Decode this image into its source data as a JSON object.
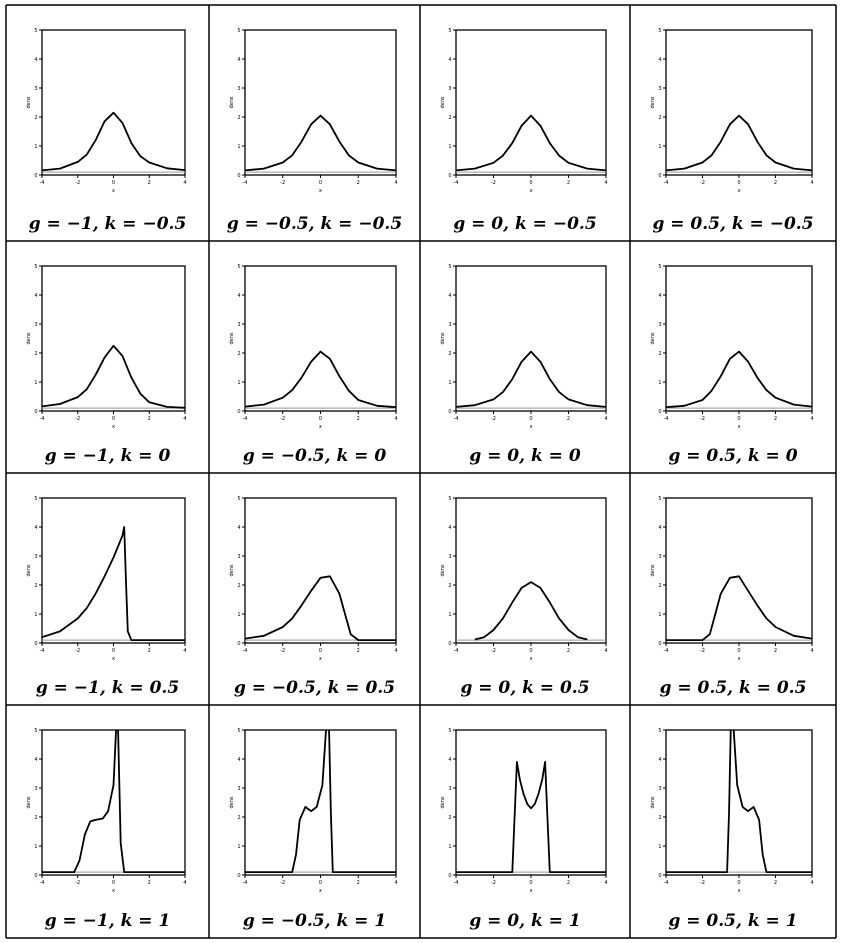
{
  "chart_data": [
    {
      "type": "line",
      "caption": "g = −1, k = −0.5",
      "g": -1,
      "k": -0.5,
      "x": [
        -4,
        -3,
        -2,
        -1.5,
        -1,
        -0.5,
        0,
        0.5,
        1,
        1.5,
        2,
        3,
        4
      ],
      "y": [
        0.06,
        0.12,
        0.35,
        0.6,
        1.1,
        1.75,
        2.05,
        1.7,
        1.0,
        0.55,
        0.33,
        0.13,
        0.07
      ],
      "xlim": [
        -4,
        4
      ],
      "ylim": [
        0,
        5
      ],
      "xticks": [
        "-4",
        "-2",
        "0",
        "2",
        "4"
      ],
      "yticks": [
        "0",
        "1",
        "2",
        "3",
        "4",
        "5"
      ],
      "ylabel": "dens",
      "xlabel": "x"
    },
    {
      "type": "line",
      "caption": "g = −0.5, k = −0.5",
      "g": -0.5,
      "k": -0.5,
      "x": [
        -4,
        -3,
        -2,
        -1.5,
        -1,
        -0.5,
        0,
        0.5,
        1,
        1.5,
        2,
        3,
        4
      ],
      "y": [
        0.06,
        0.12,
        0.33,
        0.58,
        1.05,
        1.65,
        1.95,
        1.65,
        1.05,
        0.58,
        0.33,
        0.12,
        0.06
      ],
      "xlim": [
        -4,
        4
      ],
      "ylim": [
        0,
        5
      ],
      "xticks": [
        "-4",
        "-2",
        "0",
        "2",
        "4"
      ],
      "yticks": [
        "0",
        "1",
        "2",
        "3",
        "4",
        "5"
      ],
      "ylabel": "dens",
      "xlabel": "x"
    },
    {
      "type": "line",
      "caption": "g = 0, k = −0.5",
      "g": 0,
      "k": -0.5,
      "x": [
        -4,
        -3,
        -2,
        -1.5,
        -1,
        -0.5,
        0,
        0.5,
        1,
        1.5,
        2,
        3,
        4
      ],
      "y": [
        0.06,
        0.12,
        0.32,
        0.57,
        1.0,
        1.6,
        1.95,
        1.6,
        1.0,
        0.57,
        0.32,
        0.12,
        0.06
      ],
      "xlim": [
        -4,
        4
      ],
      "ylim": [
        0,
        5
      ],
      "xticks": [
        "-4",
        "-2",
        "0",
        "2",
        "4"
      ],
      "yticks": [
        "0",
        "1",
        "2",
        "3",
        "4",
        "5"
      ],
      "ylabel": "dens",
      "xlabel": "x"
    },
    {
      "type": "line",
      "caption": "g = 0.5, k = −0.5",
      "g": 0.5,
      "k": -0.5,
      "x": [
        -4,
        -3,
        -2,
        -1.5,
        -1,
        -0.5,
        0,
        0.5,
        1,
        1.5,
        2,
        3,
        4
      ],
      "y": [
        0.06,
        0.12,
        0.33,
        0.58,
        1.05,
        1.65,
        1.95,
        1.65,
        1.05,
        0.58,
        0.33,
        0.12,
        0.06
      ],
      "xlim": [
        -4,
        4
      ],
      "ylim": [
        0,
        5
      ],
      "xticks": [
        "-4",
        "-2",
        "0",
        "2",
        "4"
      ],
      "yticks": [
        "0",
        "1",
        "2",
        "3",
        "4",
        "5"
      ],
      "ylabel": "dens",
      "xlabel": "x"
    },
    {
      "type": "line",
      "caption": "g = −1, k = 0",
      "g": -1,
      "k": 0,
      "x": [
        -4,
        -3,
        -2,
        -1.5,
        -1,
        -0.5,
        0,
        0.5,
        1,
        1.5,
        2,
        3,
        4
      ],
      "y": [
        0.06,
        0.14,
        0.38,
        0.65,
        1.15,
        1.75,
        2.15,
        1.8,
        1.05,
        0.5,
        0.2,
        0.04,
        0.01
      ],
      "xlim": [
        -4,
        4
      ],
      "ylim": [
        0,
        5
      ],
      "xticks": [
        "-4",
        "-2",
        "0",
        "2",
        "4"
      ],
      "yticks": [
        "0",
        "1",
        "2",
        "3",
        "4",
        "5"
      ],
      "ylabel": "dens",
      "xlabel": "x"
    },
    {
      "type": "line",
      "caption": "g = −0.5, k = 0",
      "g": -0.5,
      "k": 0,
      "x": [
        -4,
        -3,
        -2,
        -1.5,
        -1,
        -0.5,
        0,
        0.5,
        1,
        1.5,
        2,
        3,
        4
      ],
      "y": [
        0.05,
        0.12,
        0.36,
        0.62,
        1.05,
        1.6,
        1.95,
        1.7,
        1.1,
        0.6,
        0.28,
        0.08,
        0.03
      ],
      "xlim": [
        -4,
        4
      ],
      "ylim": [
        0,
        5
      ],
      "xticks": [
        "-4",
        "-2",
        "0",
        "2",
        "4"
      ],
      "yticks": [
        "0",
        "1",
        "2",
        "3",
        "4",
        "5"
      ],
      "ylabel": "dens",
      "xlabel": "x"
    },
    {
      "type": "line",
      "caption": "g = 0, k = 0",
      "g": 0,
      "k": 0,
      "x": [
        -4,
        -3,
        -2,
        -1.5,
        -1,
        -0.5,
        0,
        0.5,
        1,
        1.5,
        2,
        3,
        4
      ],
      "y": [
        0.04,
        0.1,
        0.3,
        0.55,
        1.0,
        1.6,
        1.95,
        1.6,
        1.0,
        0.55,
        0.3,
        0.1,
        0.04
      ],
      "xlim": [
        -4,
        4
      ],
      "ylim": [
        0,
        5
      ],
      "xticks": [
        "-4",
        "-2",
        "0",
        "2",
        "4"
      ],
      "yticks": [
        "0",
        "1",
        "2",
        "3",
        "4",
        "5"
      ],
      "ylabel": "dens",
      "xlabel": "x"
    },
    {
      "type": "line",
      "caption": "g = 0.5, k = 0",
      "g": 0.5,
      "k": 0,
      "x": [
        -4,
        -3,
        -2,
        -1.5,
        -1,
        -0.5,
        0,
        0.5,
        1,
        1.5,
        2,
        3,
        4
      ],
      "y": [
        0.03,
        0.08,
        0.28,
        0.6,
        1.1,
        1.7,
        1.95,
        1.6,
        1.05,
        0.62,
        0.36,
        0.12,
        0.05
      ],
      "xlim": [
        -4,
        4
      ],
      "ylim": [
        0,
        5
      ],
      "xticks": [
        "-4",
        "-2",
        "0",
        "2",
        "4"
      ],
      "yticks": [
        "0",
        "1",
        "2",
        "3",
        "4",
        "5"
      ],
      "ylabel": "dens",
      "xlabel": "x"
    },
    {
      "type": "line",
      "caption": "g = −1, k = 0.5",
      "g": -1,
      "k": 0.5,
      "x": [
        -4,
        -3,
        -2,
        -1.5,
        -1,
        -0.5,
        0,
        0.3,
        0.5,
        0.6,
        0.7,
        0.8,
        1.0,
        2,
        4
      ],
      "y": [
        0.1,
        0.3,
        0.75,
        1.1,
        1.6,
        2.2,
        2.85,
        3.3,
        3.6,
        3.9,
        2.0,
        0.3,
        0.0,
        0.0,
        0.0
      ],
      "xlim": [
        -4,
        4
      ],
      "ylim": [
        0,
        5
      ],
      "xticks": [
        "-4",
        "-2",
        "0",
        "2",
        "4"
      ],
      "yticks": [
        "0",
        "1",
        "2",
        "3",
        "4",
        "5"
      ],
      "ylabel": "dens",
      "xlabel": "x"
    },
    {
      "type": "line",
      "caption": "g = −0.5, k = 0.5",
      "g": -0.5,
      "k": 0.5,
      "x": [
        -4,
        -3,
        -2,
        -1.5,
        -1,
        -0.5,
        0,
        0.5,
        1,
        1.3,
        1.6,
        2,
        4
      ],
      "y": [
        0.05,
        0.15,
        0.45,
        0.75,
        1.2,
        1.7,
        2.15,
        2.2,
        1.6,
        0.9,
        0.2,
        0.0,
        0.0
      ],
      "xlim": [
        -4,
        4
      ],
      "ylim": [
        0,
        5
      ],
      "xticks": [
        "-4",
        "-2",
        "0",
        "2",
        "4"
      ],
      "yticks": [
        "0",
        "1",
        "2",
        "3",
        "4",
        "5"
      ],
      "ylabel": "dens",
      "xlabel": "x"
    },
    {
      "type": "line",
      "caption": "g = 0, k = 0.5",
      "g": 0,
      "k": 0.5,
      "x": [
        -3,
        -2.5,
        -2,
        -1.5,
        -1,
        -0.5,
        0,
        0.5,
        1,
        1.5,
        2,
        2.5,
        3
      ],
      "y": [
        0.02,
        0.1,
        0.35,
        0.75,
        1.3,
        1.8,
        2.0,
        1.8,
        1.3,
        0.75,
        0.35,
        0.1,
        0.02
      ],
      "xlim": [
        -4,
        4
      ],
      "ylim": [
        0,
        5
      ],
      "xticks": [
        "-4",
        "-2",
        "0",
        "2",
        "4"
      ],
      "yticks": [
        "0",
        "1",
        "2",
        "3",
        "4",
        "5"
      ],
      "ylabel": "dens",
      "xlabel": "x"
    },
    {
      "type": "line",
      "caption": "g = 0.5, k = 0.5",
      "g": 0.5,
      "k": 0.5,
      "x": [
        -4,
        -2,
        -1.6,
        -1.3,
        -1,
        -0.5,
        0,
        0.5,
        1,
        1.5,
        2,
        3,
        4
      ],
      "y": [
        0.0,
        0.0,
        0.2,
        0.9,
        1.6,
        2.15,
        2.2,
        1.7,
        1.2,
        0.75,
        0.45,
        0.15,
        0.05
      ],
      "xlim": [
        -4,
        4
      ],
      "ylim": [
        0,
        5
      ],
      "xticks": [
        "-4",
        "-2",
        "0",
        "2",
        "4"
      ],
      "yticks": [
        "0",
        "1",
        "2",
        "3",
        "4",
        "5"
      ],
      "ylabel": "dens",
      "xlabel": "x"
    },
    {
      "type": "line",
      "caption": "g = −1, k = 1",
      "g": -1,
      "k": 1,
      "x": [
        -4,
        -2.2,
        -1.9,
        -1.6,
        -1.3,
        -1,
        -0.6,
        -0.3,
        0,
        0.15,
        0.25,
        0.4,
        0.6,
        4
      ],
      "y": [
        0,
        0,
        0.4,
        1.3,
        1.75,
        1.8,
        1.85,
        2.1,
        3.0,
        5.0,
        5.0,
        1.0,
        0.0,
        0
      ],
      "xlim": [
        -4,
        4
      ],
      "ylim": [
        0,
        5
      ],
      "xticks": [
        "-4",
        "-2",
        "0",
        "2",
        "4"
      ],
      "yticks": [
        "0",
        "1",
        "2",
        "3",
        "4",
        "5"
      ],
      "ylabel": "dens",
      "xlabel": "x"
    },
    {
      "type": "line",
      "caption": "g = −0.5, k = 1",
      "g": -0.5,
      "k": 1,
      "x": [
        -4,
        -1.5,
        -1.3,
        -1.1,
        -0.8,
        -0.5,
        -0.2,
        0.1,
        0.3,
        0.45,
        0.55,
        0.65,
        4
      ],
      "y": [
        0,
        0,
        0.6,
        1.8,
        2.25,
        2.1,
        2.25,
        3.0,
        5.0,
        5.0,
        2.0,
        0.0,
        0
      ],
      "xlim": [
        -4,
        4
      ],
      "ylim": [
        0,
        5
      ],
      "xticks": [
        "-4",
        "-2",
        "0",
        "2",
        "4"
      ],
      "yticks": [
        "0",
        "1",
        "2",
        "3",
        "4",
        "5"
      ],
      "ylabel": "dens",
      "xlabel": "x"
    },
    {
      "type": "line",
      "caption": "g = 0, k = 1",
      "g": 0,
      "k": 1,
      "x": [
        -4,
        -1.0,
        -0.9,
        -0.75,
        -0.6,
        -0.4,
        -0.2,
        0,
        0.2,
        0.4,
        0.6,
        0.75,
        0.9,
        1.0,
        4
      ],
      "y": [
        0,
        0,
        1.5,
        3.8,
        3.2,
        2.7,
        2.35,
        2.2,
        2.35,
        2.7,
        3.2,
        3.8,
        1.5,
        0,
        0
      ],
      "xlim": [
        -4,
        4
      ],
      "ylim": [
        0,
        5
      ],
      "xticks": [
        "-4",
        "-2",
        "0",
        "2",
        "4"
      ],
      "yticks": [
        "0",
        "1",
        "2",
        "3",
        "4",
        "5"
      ],
      "ylabel": "dens",
      "xlabel": "x"
    },
    {
      "type": "line",
      "caption": "g = 0.5, k = 1",
      "g": 0.5,
      "k": 1,
      "x": [
        -4,
        -0.65,
        -0.55,
        -0.45,
        -0.3,
        -0.1,
        0.2,
        0.5,
        0.8,
        1.1,
        1.3,
        1.5,
        4
      ],
      "y": [
        0,
        0,
        2.0,
        5.0,
        5.0,
        3.0,
        2.25,
        2.1,
        2.25,
        1.8,
        0.6,
        0,
        0
      ],
      "xlim": [
        -4,
        4
      ],
      "ylim": [
        0,
        5
      ],
      "xticks": [
        "-4",
        "-2",
        "0",
        "2",
        "4"
      ],
      "yticks": [
        "0",
        "1",
        "2",
        "3",
        "4",
        "5"
      ],
      "ylabel": "dens",
      "xlabel": "x"
    }
  ]
}
